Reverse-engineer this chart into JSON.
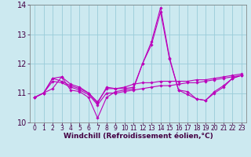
{
  "xlabel": "Windchill (Refroidissement éolien,°C)",
  "background_color": "#cce9f0",
  "grid_color": "#99ccd9",
  "line_color": "#bb00bb",
  "xlim": [
    -0.5,
    23.5
  ],
  "ylim": [
    10,
    14
  ],
  "yticks": [
    10,
    11,
    12,
    13,
    14
  ],
  "xticks": [
    0,
    1,
    2,
    3,
    4,
    5,
    6,
    7,
    8,
    9,
    10,
    11,
    12,
    13,
    14,
    15,
    16,
    17,
    18,
    19,
    20,
    21,
    22,
    23
  ],
  "x": [
    0,
    1,
    2,
    3,
    4,
    5,
    6,
    7,
    8,
    9,
    10,
    11,
    12,
    13,
    14,
    15,
    16,
    17,
    18,
    19,
    20,
    21,
    22,
    23
  ],
  "series": [
    [
      10.85,
      11.0,
      11.15,
      11.55,
      11.1,
      11.05,
      10.85,
      10.15,
      10.85,
      11.05,
      11.1,
      11.15,
      12.0,
      12.75,
      13.9,
      12.2,
      11.1,
      10.95,
      10.8,
      10.75,
      11.0,
      11.2,
      11.5,
      11.6
    ],
    [
      10.85,
      11.0,
      11.5,
      11.55,
      11.3,
      11.2,
      11.0,
      10.7,
      11.15,
      11.15,
      11.15,
      11.2,
      12.0,
      12.65,
      13.75,
      12.15,
      11.1,
      11.05,
      10.8,
      10.75,
      11.05,
      11.25,
      11.5,
      11.6
    ],
    [
      10.85,
      11.0,
      11.5,
      11.4,
      11.25,
      11.15,
      11.0,
      10.65,
      11.2,
      11.15,
      11.2,
      11.3,
      11.35,
      11.35,
      11.4,
      11.4,
      11.4,
      11.4,
      11.45,
      11.45,
      11.5,
      11.55,
      11.6,
      11.65
    ],
    [
      10.85,
      11.0,
      11.4,
      11.35,
      11.2,
      11.1,
      10.95,
      10.6,
      11.0,
      11.0,
      11.05,
      11.1,
      11.15,
      11.2,
      11.25,
      11.25,
      11.3,
      11.35,
      11.35,
      11.4,
      11.45,
      11.5,
      11.55,
      11.6
    ]
  ],
  "ytick_fontsize": 7,
  "xtick_fontsize": 5.5,
  "xlabel_fontsize": 6.5,
  "xlabel_color": "#440044",
  "tick_color": "#440044"
}
